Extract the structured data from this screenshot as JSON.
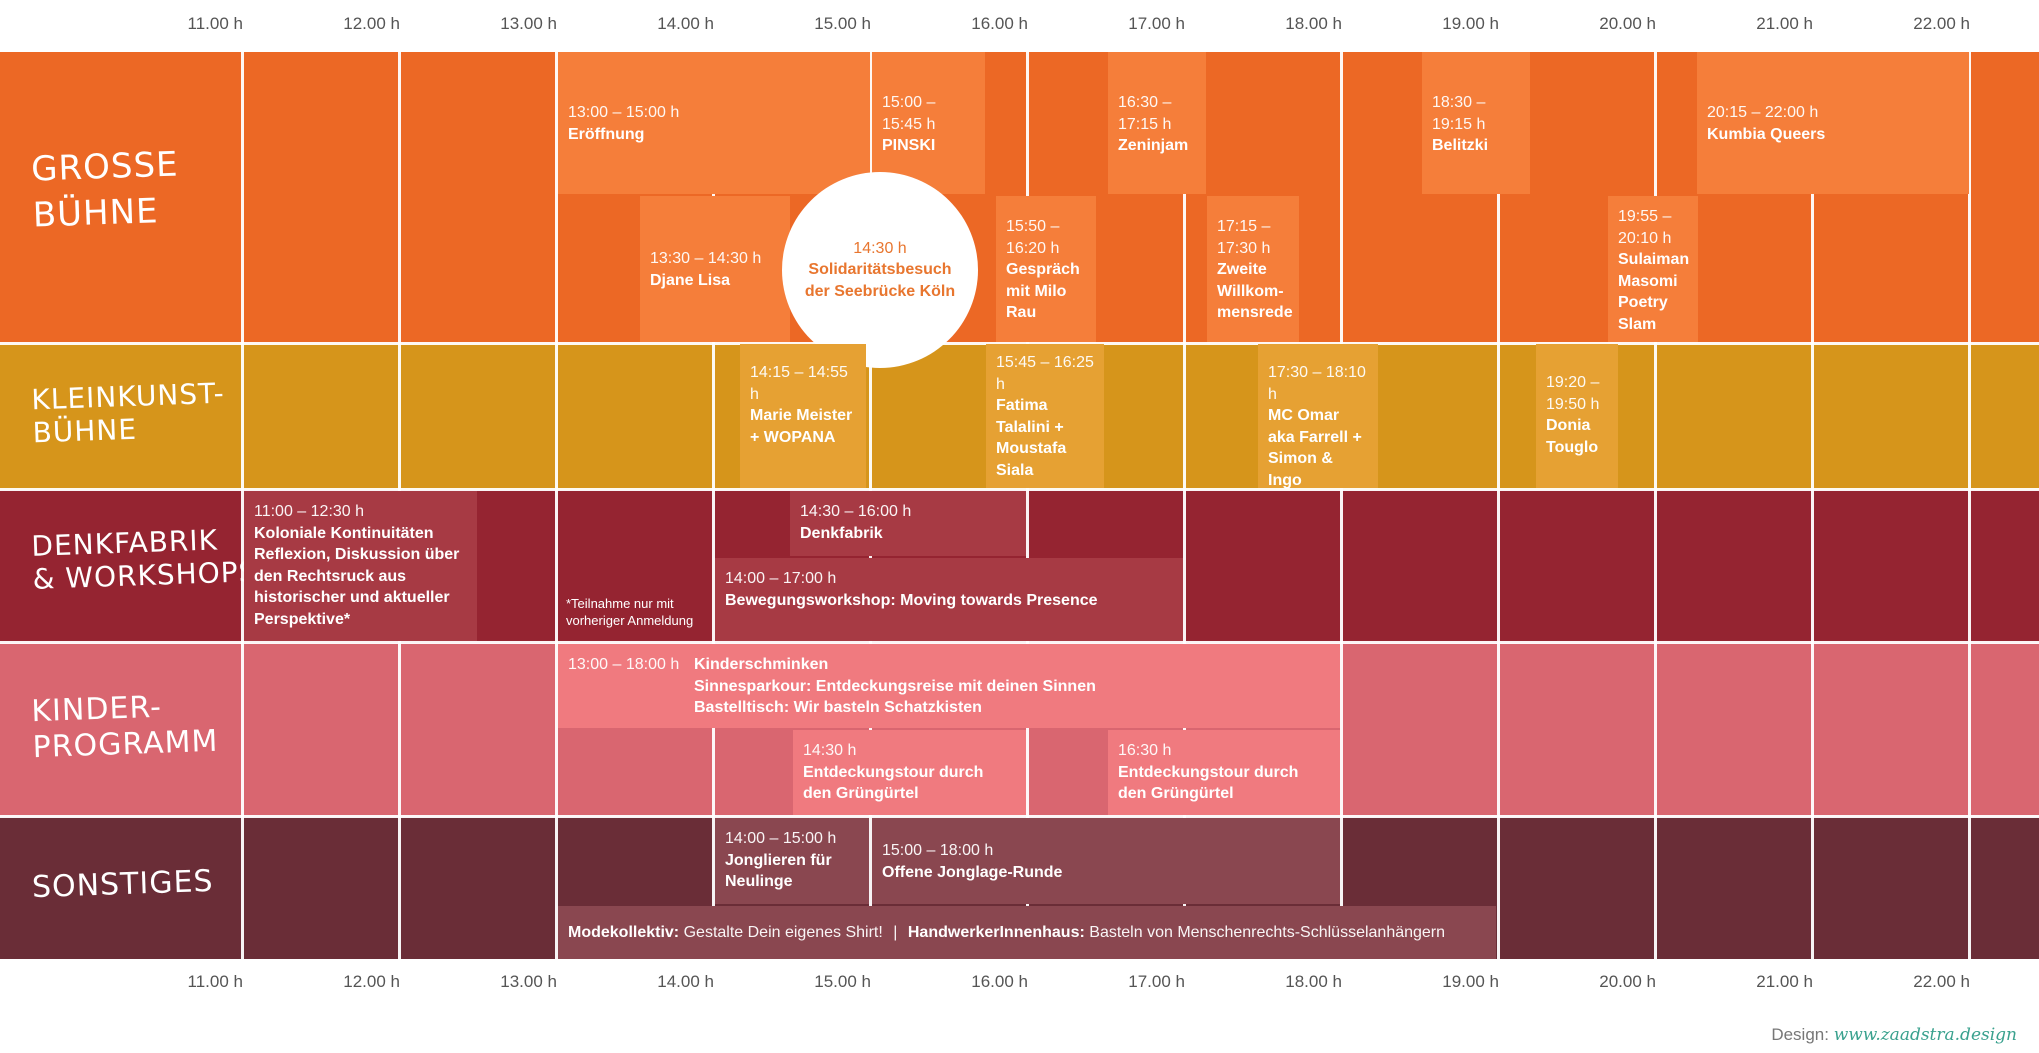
{
  "hours": [
    "11.00 h",
    "12.00 h",
    "13.00 h",
    "14.00 h",
    "15.00 h",
    "16.00 h",
    "17.00 h",
    "18.00 h",
    "19.00 h",
    "20.00 h",
    "21.00 h",
    "22.00 h"
  ],
  "rows": {
    "grosse_buehne": {
      "label_line1": "Grosse",
      "label_line2": "Bühne",
      "color": "#ee6a25"
    },
    "kleinkunst": {
      "label_line1": "Kleinkunst-",
      "label_line2": "Bühne",
      "color": "#d8961c"
    },
    "denkfabrik": {
      "label_line1": "Denkfabrik",
      "label_line2": "& Workshops",
      "color": "#982632"
    },
    "kinder": {
      "label_line1": "Kinder-",
      "label_line2": "Programm",
      "color": "#dc6872"
    },
    "sonstiges": {
      "label_line1": "Sonstiges",
      "label_line2": "",
      "color": "#6b2e38"
    }
  },
  "events": {
    "eroeffnung": {
      "time": "13:00 – 15:00 h",
      "name": "Eröffnung"
    },
    "pinski": {
      "time": "15:00 – 15:45 h",
      "name": "PINSKI"
    },
    "zeninjam": {
      "time": "16:30 – 17:15 h",
      "name": "Zeninjam"
    },
    "belitzki": {
      "time": "18:30 – 19:15 h",
      "name": "Belitzki"
    },
    "kumbia": {
      "time": "20:15 – 22:00 h",
      "name": "Kumbia Queers"
    },
    "djane": {
      "time": "13:30 – 14:30 h",
      "name": "Djane Lisa"
    },
    "seebruecke": {
      "time": "14:30 h",
      "name": "Solidaritätsbesuch der Seebrücke Köln"
    },
    "milo": {
      "time": "15:50 – 16:20 h",
      "name": "Gespräch mit Milo Rau"
    },
    "willkommensrede": {
      "time": "17:15 – 17:30 h",
      "name": "Zweite Willkom-mensrede"
    },
    "sulaiman": {
      "time": "19:55 – 20:10 h",
      "name": "Sulaiman Masomi Poetry Slam"
    },
    "marie": {
      "time": "14:15 – 14:55 h",
      "name": "Marie Meister + WOPANA"
    },
    "fatima": {
      "time": "15:45 – 16:25 h",
      "name": "Fatima Talalini + Moustafa Siala"
    },
    "mcomar": {
      "time": "17:30 – 18:10 h",
      "name": "MC Omar aka Farrell + Simon & Ingo"
    },
    "donia": {
      "time": "19:20 – 19:50 h",
      "name": "Donia Touglo"
    },
    "kolonial": {
      "time": "11:00 – 12:30 h",
      "name": "Koloniale Kontinuitäten Reflexion, Diskussion über den Rechtsruck aus historischer und aktueller Perspektive*"
    },
    "denkfabrik": {
      "time": "14:30 – 16:00 h",
      "name": "Denkfabrik"
    },
    "bewegung": {
      "time": "14:00 – 17:00 h",
      "name": "Bewegungsworkshop: Moving towards Presence"
    },
    "kinder_main": {
      "time": "13:00 – 18:00 h",
      "item1": "Kinderschminken",
      "item2": "Sinnesparkour: Entdeckungsreise mit deinen Sinnen",
      "item3": "Bastelltisch: Wir basteln Schatzkisten"
    },
    "tour1": {
      "time": "14:30 h",
      "name": "Entdeckungstour durch den Grüngürtel"
    },
    "tour2": {
      "time": "16:30 h",
      "name": "Entdeckungstour durch den Grüngürtel"
    },
    "jonglieren": {
      "time": "14:00 – 15:00 h",
      "name": "Jonglieren für Neulinge"
    },
    "jonglage": {
      "time": "15:00 – 18:00 h",
      "name": "Offene Jonglage-Runde"
    },
    "mode": {
      "org1": "Modekollektiv:",
      "text1": "Gestalte Dein eigenes Shirt!",
      "sep": "|",
      "org2": "HandwerkerInnenhaus:",
      "text2": "Basteln von Menschenrechts-Schlüsselanhängern"
    }
  },
  "note": "*Teilnahme nur mit vorheriger Anmeldung",
  "credit": {
    "label": "Design:",
    "url": "www.zaadstra.design"
  }
}
